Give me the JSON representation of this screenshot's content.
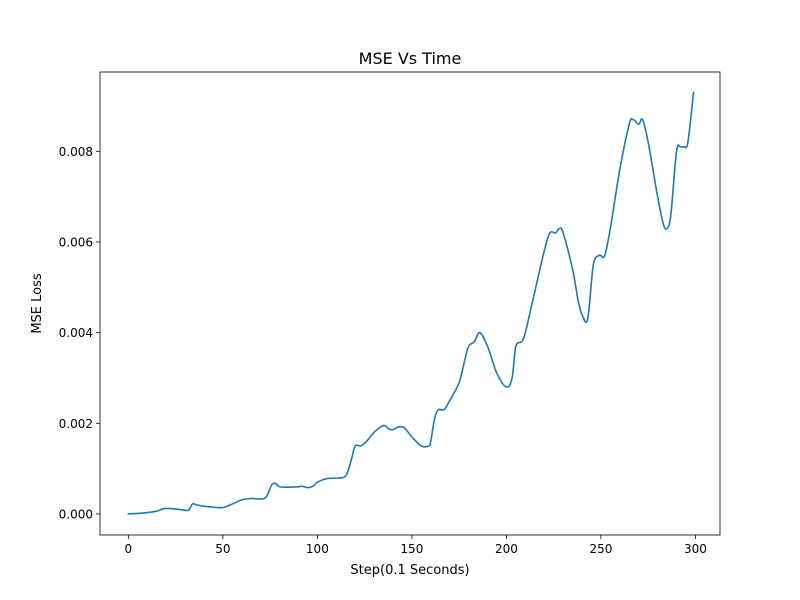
{
  "chart_data": {
    "type": "line",
    "title": "MSE Vs Time",
    "xlabel": "Step(0.1 Seconds)",
    "ylabel": "MSE Loss",
    "xlim": [
      -15,
      313
    ],
    "ylim": [
      -0.000465,
      0.00975
    ],
    "xticks": [
      0,
      50,
      100,
      150,
      200,
      250,
      300
    ],
    "xtick_labels": [
      "0",
      "50",
      "100",
      "150",
      "200",
      "250",
      "300"
    ],
    "yticks": [
      0.0,
      0.002,
      0.004,
      0.006,
      0.008
    ],
    "ytick_labels": [
      "0.000",
      "0.002",
      "0.004",
      "0.006",
      "0.008"
    ],
    "grid": false,
    "legend": null,
    "series": [
      {
        "color": "#1f77b4",
        "x": [
          0,
          5,
          10,
          15,
          18,
          20,
          25,
          30,
          32,
          34,
          36,
          40,
          45,
          50,
          55,
          60,
          65,
          70,
          73,
          76,
          78,
          80,
          85,
          90,
          92,
          95,
          98,
          100,
          105,
          110,
          115,
          118,
          120,
          123,
          126,
          130,
          135,
          138,
          140,
          143,
          146,
          150,
          155,
          159,
          160,
          162,
          164,
          167,
          170,
          175,
          178,
          180,
          183,
          186,
          190,
          195,
          200,
          203,
          205,
          208,
          210,
          215,
          220,
          223,
          226,
          228,
          230,
          235,
          238,
          240,
          243,
          246,
          249,
          250,
          252,
          255,
          260,
          265,
          267,
          270,
          272,
          275,
          280,
          283,
          285,
          287,
          290,
          292,
          294,
          296,
          299
        ],
        "y": [
          0.0,
          1e-05,
          3e-05,
          6e-05,
          0.00011,
          0.00012,
          0.00011,
          8e-05,
          9e-05,
          0.00022,
          0.0002,
          0.00017,
          0.00015,
          0.00014,
          0.00022,
          0.00031,
          0.00034,
          0.00033,
          0.00038,
          0.00065,
          0.00067,
          0.0006,
          0.00059,
          0.0006,
          0.00061,
          0.00058,
          0.00062,
          0.0007,
          0.00078,
          0.00079,
          0.00084,
          0.0012,
          0.0015,
          0.0015,
          0.0016,
          0.0018,
          0.00195,
          0.00187,
          0.00186,
          0.00192,
          0.0019,
          0.0017,
          0.0015,
          0.0015,
          0.0016,
          0.0021,
          0.0023,
          0.0023,
          0.0025,
          0.0029,
          0.0034,
          0.0037,
          0.0038,
          0.004,
          0.0037,
          0.0031,
          0.0028,
          0.003,
          0.0037,
          0.0038,
          0.004,
          0.0049,
          0.0058,
          0.0062,
          0.0062,
          0.0063,
          0.0062,
          0.0054,
          0.0047,
          0.0044,
          0.0043,
          0.0055,
          0.0057,
          0.0057,
          0.0057,
          0.0063,
          0.0076,
          0.0086,
          0.0087,
          0.0086,
          0.0087,
          0.0082,
          0.007,
          0.0064,
          0.0063,
          0.0066,
          0.008,
          0.0081,
          0.0081,
          0.0082,
          0.0093
        ]
      }
    ]
  }
}
